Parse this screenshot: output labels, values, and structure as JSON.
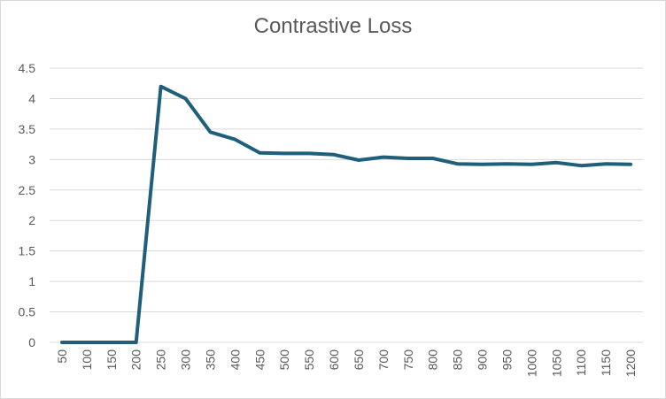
{
  "chart_data": {
    "type": "line",
    "title": "Contrastive Loss",
    "xlabel": "",
    "ylabel": "",
    "categories": [
      "50",
      "100",
      "150",
      "200",
      "250",
      "300",
      "350",
      "400",
      "450",
      "500",
      "550",
      "600",
      "650",
      "700",
      "750",
      "800",
      "850",
      "900",
      "950",
      "1000",
      "1050",
      "1100",
      "1150",
      "1200"
    ],
    "series": [
      {
        "values": [
          0,
          0,
          0,
          0,
          4.2,
          4.0,
          3.45,
          3.33,
          3.11,
          3.1,
          3.1,
          3.08,
          2.99,
          3.04,
          3.02,
          3.02,
          2.93,
          2.92,
          2.93,
          2.92,
          2.95,
          2.9,
          2.93,
          2.92
        ],
        "color": "#1f5f7a"
      }
    ],
    "ylim": [
      0,
      4.5
    ],
    "yticks": [
      "0",
      "0.5",
      "1",
      "1.5",
      "2",
      "2.5",
      "3",
      "3.5",
      "4",
      "4.5"
    ],
    "grid": true,
    "legend": "none"
  }
}
